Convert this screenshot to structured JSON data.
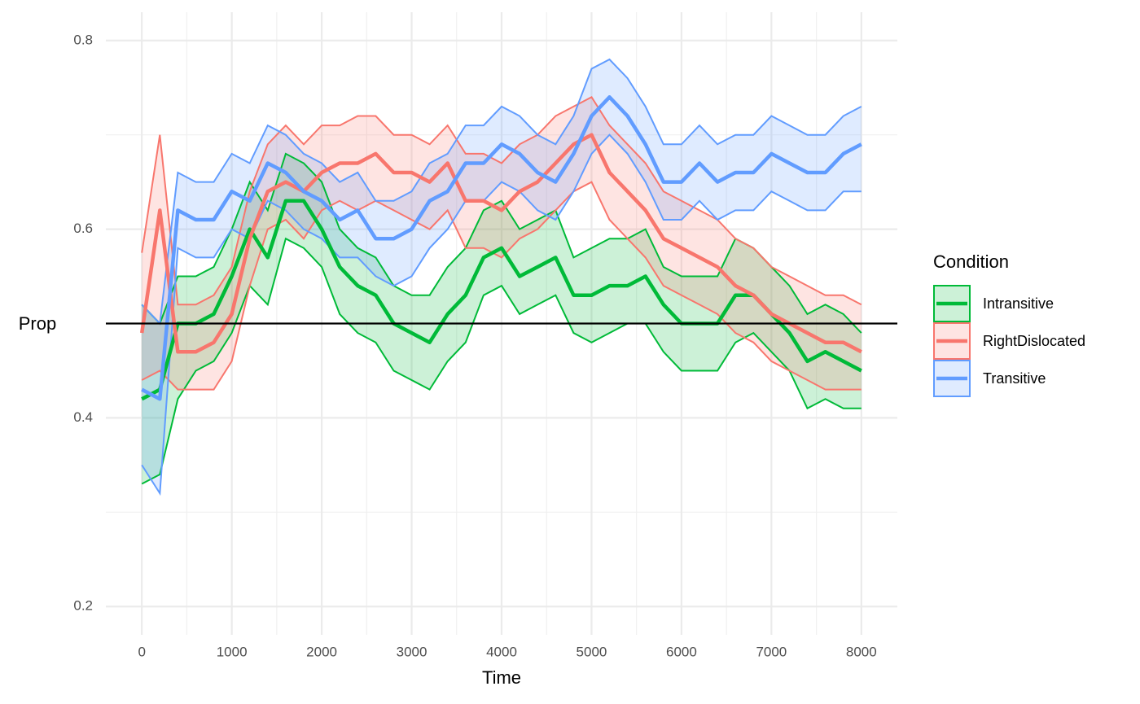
{
  "chart_data": {
    "type": "line",
    "x_label": "Time",
    "y_label": "Prop",
    "legend_title": "Condition",
    "legend_position": "right",
    "grid": true,
    "hline": 0.5,
    "xlim": [
      -400,
      8400
    ],
    "ylim": [
      0.17,
      0.83
    ],
    "xticks": [
      0,
      1000,
      2000,
      3000,
      4000,
      5000,
      6000,
      7000,
      8000
    ],
    "yticks": [
      0.2,
      0.4,
      0.6,
      0.8
    ],
    "x": [
      0,
      200,
      400,
      600,
      800,
      1000,
      1200,
      1400,
      1600,
      1800,
      2000,
      2200,
      2400,
      2600,
      2800,
      3000,
      3200,
      3400,
      3600,
      3800,
      4000,
      4200,
      4400,
      4600,
      4800,
      5000,
      5200,
      5400,
      5600,
      5800,
      6000,
      6200,
      6400,
      6600,
      6800,
      7000,
      7200,
      7400,
      7600,
      7800,
      8000
    ],
    "series": [
      {
        "name": "Intransitive",
        "color": "#00BA38",
        "values": [
          0.42,
          0.43,
          0.5,
          0.5,
          0.51,
          0.55,
          0.6,
          0.57,
          0.63,
          0.63,
          0.6,
          0.56,
          0.54,
          0.53,
          0.5,
          0.49,
          0.48,
          0.51,
          0.53,
          0.57,
          0.58,
          0.55,
          0.56,
          0.57,
          0.53,
          0.53,
          0.54,
          0.54,
          0.55,
          0.52,
          0.5,
          0.5,
          0.5,
          0.53,
          0.53,
          0.51,
          0.49,
          0.46,
          0.47,
          0.46,
          0.45
        ],
        "lower": [
          0.33,
          0.34,
          0.42,
          0.45,
          0.46,
          0.49,
          0.54,
          0.52,
          0.59,
          0.58,
          0.56,
          0.51,
          0.49,
          0.48,
          0.45,
          0.44,
          0.43,
          0.46,
          0.48,
          0.53,
          0.54,
          0.51,
          0.52,
          0.53,
          0.49,
          0.48,
          0.49,
          0.5,
          0.5,
          0.47,
          0.45,
          0.45,
          0.45,
          0.48,
          0.49,
          0.47,
          0.45,
          0.41,
          0.42,
          0.41,
          0.41
        ],
        "upper": [
          0.52,
          0.5,
          0.55,
          0.55,
          0.56,
          0.6,
          0.65,
          0.62,
          0.68,
          0.67,
          0.65,
          0.6,
          0.58,
          0.57,
          0.54,
          0.53,
          0.53,
          0.56,
          0.58,
          0.62,
          0.63,
          0.6,
          0.61,
          0.62,
          0.57,
          0.58,
          0.59,
          0.59,
          0.6,
          0.56,
          0.55,
          0.55,
          0.55,
          0.59,
          0.58,
          0.56,
          0.54,
          0.51,
          0.52,
          0.51,
          0.49
        ]
      },
      {
        "name": "RightDislocated",
        "color": "#F8766D",
        "values": [
          0.49,
          0.62,
          0.47,
          0.47,
          0.48,
          0.51,
          0.59,
          0.64,
          0.65,
          0.64,
          0.66,
          0.67,
          0.67,
          0.68,
          0.66,
          0.66,
          0.65,
          0.67,
          0.63,
          0.63,
          0.62,
          0.64,
          0.65,
          0.67,
          0.69,
          0.7,
          0.66,
          0.64,
          0.62,
          0.59,
          0.58,
          0.57,
          0.56,
          0.54,
          0.53,
          0.51,
          0.5,
          0.49,
          0.48,
          0.48,
          0.47
        ],
        "lower": [
          0.44,
          0.45,
          0.43,
          0.43,
          0.43,
          0.46,
          0.54,
          0.6,
          0.61,
          0.59,
          0.62,
          0.63,
          0.62,
          0.63,
          0.62,
          0.61,
          0.6,
          0.62,
          0.58,
          0.58,
          0.57,
          0.59,
          0.6,
          0.62,
          0.64,
          0.65,
          0.61,
          0.59,
          0.57,
          0.54,
          0.53,
          0.52,
          0.51,
          0.49,
          0.48,
          0.46,
          0.45,
          0.44,
          0.43,
          0.43,
          0.43
        ],
        "upper": [
          0.575,
          0.7,
          0.52,
          0.52,
          0.53,
          0.56,
          0.64,
          0.69,
          0.71,
          0.69,
          0.71,
          0.71,
          0.72,
          0.72,
          0.7,
          0.7,
          0.69,
          0.71,
          0.68,
          0.68,
          0.67,
          0.69,
          0.7,
          0.72,
          0.73,
          0.74,
          0.71,
          0.69,
          0.67,
          0.64,
          0.63,
          0.62,
          0.61,
          0.59,
          0.58,
          0.56,
          0.55,
          0.54,
          0.53,
          0.53,
          0.52
        ]
      },
      {
        "name": "Transitive",
        "color": "#619CFF",
        "values": [
          0.43,
          0.42,
          0.62,
          0.61,
          0.61,
          0.64,
          0.63,
          0.67,
          0.66,
          0.64,
          0.63,
          0.61,
          0.62,
          0.59,
          0.59,
          0.6,
          0.63,
          0.64,
          0.67,
          0.67,
          0.69,
          0.68,
          0.66,
          0.65,
          0.68,
          0.72,
          0.74,
          0.72,
          0.69,
          0.65,
          0.65,
          0.67,
          0.65,
          0.66,
          0.66,
          0.68,
          0.67,
          0.66,
          0.66,
          0.68,
          0.69
        ],
        "lower": [
          0.35,
          0.32,
          0.58,
          0.57,
          0.57,
          0.6,
          0.59,
          0.63,
          0.62,
          0.6,
          0.59,
          0.57,
          0.57,
          0.55,
          0.54,
          0.55,
          0.58,
          0.6,
          0.63,
          0.63,
          0.65,
          0.64,
          0.62,
          0.61,
          0.64,
          0.68,
          0.7,
          0.68,
          0.65,
          0.61,
          0.61,
          0.63,
          0.61,
          0.62,
          0.62,
          0.64,
          0.63,
          0.62,
          0.62,
          0.64,
          0.64
        ],
        "upper": [
          0.52,
          0.5,
          0.66,
          0.65,
          0.65,
          0.68,
          0.67,
          0.71,
          0.7,
          0.68,
          0.67,
          0.65,
          0.66,
          0.63,
          0.63,
          0.64,
          0.67,
          0.68,
          0.71,
          0.71,
          0.73,
          0.72,
          0.7,
          0.69,
          0.72,
          0.77,
          0.78,
          0.76,
          0.73,
          0.69,
          0.69,
          0.71,
          0.69,
          0.7,
          0.7,
          0.72,
          0.71,
          0.7,
          0.7,
          0.72,
          0.73
        ]
      }
    ]
  }
}
